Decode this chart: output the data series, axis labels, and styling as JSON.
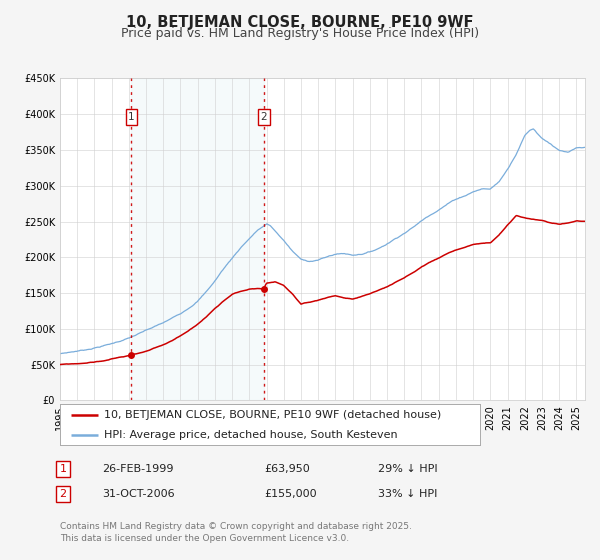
{
  "title": "10, BETJEMAN CLOSE, BOURNE, PE10 9WF",
  "subtitle": "Price paid vs. HM Land Registry's House Price Index (HPI)",
  "ylim": [
    0,
    450000
  ],
  "yticks": [
    0,
    50000,
    100000,
    150000,
    200000,
    250000,
    300000,
    350000,
    400000,
    450000
  ],
  "ytick_labels": [
    "£0",
    "£50K",
    "£100K",
    "£150K",
    "£200K",
    "£250K",
    "£300K",
    "£350K",
    "£400K",
    "£450K"
  ],
  "xlim_start": 1995.0,
  "xlim_end": 2025.5,
  "xticks": [
    1995,
    1996,
    1997,
    1998,
    1999,
    2000,
    2001,
    2002,
    2003,
    2004,
    2005,
    2006,
    2007,
    2008,
    2009,
    2010,
    2011,
    2012,
    2013,
    2014,
    2015,
    2016,
    2017,
    2018,
    2019,
    2020,
    2021,
    2022,
    2023,
    2024,
    2025
  ],
  "bg_color": "#f5f5f5",
  "plot_bg": "#ffffff",
  "red_line_color": "#cc0000",
  "blue_line_color": "#7aaddb",
  "sale1_x": 1999.15,
  "sale1_y": 63950,
  "sale2_x": 2006.83,
  "sale2_y": 155000,
  "vline_color": "#cc0000",
  "legend_red": "10, BETJEMAN CLOSE, BOURNE, PE10 9WF (detached house)",
  "legend_blue": "HPI: Average price, detached house, South Kesteven",
  "table_row1_num": "1",
  "table_row1_date": "26-FEB-1999",
  "table_row1_price": "£63,950",
  "table_row1_hpi": "29% ↓ HPI",
  "table_row2_num": "2",
  "table_row2_date": "31-OCT-2006",
  "table_row2_price": "£155,000",
  "table_row2_hpi": "33% ↓ HPI",
  "footer": "Contains HM Land Registry data © Crown copyright and database right 2025.\nThis data is licensed under the Open Government Licence v3.0.",
  "title_fontsize": 10.5,
  "subtitle_fontsize": 9,
  "tick_fontsize": 7,
  "legend_fontsize": 8,
  "table_fontsize": 8,
  "footer_fontsize": 6.5,
  "blue_kp_x": [
    1995.0,
    1995.5,
    1996.0,
    1996.5,
    1997.0,
    1997.5,
    1998.0,
    1998.5,
    1999.0,
    1999.5,
    2000.0,
    2000.5,
    2001.0,
    2001.5,
    2002.0,
    2002.5,
    2003.0,
    2003.5,
    2004.0,
    2004.5,
    2005.0,
    2005.5,
    2006.0,
    2006.5,
    2007.0,
    2007.25,
    2007.5,
    2008.0,
    2008.5,
    2009.0,
    2009.5,
    2010.0,
    2010.5,
    2011.0,
    2011.5,
    2012.0,
    2012.5,
    2013.0,
    2013.5,
    2014.0,
    2014.5,
    2015.0,
    2015.5,
    2016.0,
    2016.5,
    2017.0,
    2017.5,
    2018.0,
    2018.5,
    2019.0,
    2019.5,
    2020.0,
    2020.5,
    2021.0,
    2021.5,
    2022.0,
    2022.25,
    2022.5,
    2023.0,
    2023.5,
    2024.0,
    2024.5,
    2025.0,
    2025.5
  ],
  "blue_kp_y": [
    65000,
    67000,
    69000,
    71000,
    74000,
    77000,
    80000,
    84000,
    88000,
    93000,
    98000,
    103000,
    108000,
    114000,
    121000,
    130000,
    140000,
    153000,
    168000,
    185000,
    200000,
    215000,
    228000,
    240000,
    248000,
    245000,
    238000,
    225000,
    210000,
    198000,
    196000,
    198000,
    202000,
    206000,
    207000,
    205000,
    207000,
    210000,
    215000,
    222000,
    230000,
    238000,
    246000,
    255000,
    264000,
    272000,
    280000,
    287000,
    292000,
    298000,
    302000,
    302000,
    312000,
    330000,
    352000,
    378000,
    385000,
    388000,
    375000,
    368000,
    358000,
    355000,
    360000,
    360000
  ],
  "red_kp_x": [
    1995.0,
    1995.5,
    1996.0,
    1996.5,
    1997.0,
    1997.5,
    1998.0,
    1998.5,
    1999.0,
    1999.15,
    1999.5,
    2000.0,
    2000.5,
    2001.0,
    2001.5,
    2002.0,
    2002.5,
    2003.0,
    2003.5,
    2004.0,
    2004.5,
    2005.0,
    2005.5,
    2006.0,
    2006.5,
    2006.83,
    2007.0,
    2007.5,
    2008.0,
    2008.5,
    2009.0,
    2009.5,
    2010.0,
    2010.5,
    2011.0,
    2011.5,
    2012.0,
    2012.5,
    2013.0,
    2013.5,
    2014.0,
    2014.5,
    2015.0,
    2015.5,
    2016.0,
    2016.5,
    2017.0,
    2017.5,
    2018.0,
    2018.5,
    2019.0,
    2019.5,
    2020.0,
    2020.5,
    2021.0,
    2021.5,
    2022.0,
    2022.5,
    2023.0,
    2023.5,
    2024.0,
    2024.5,
    2025.0,
    2025.5
  ],
  "red_kp_y": [
    50000,
    50500,
    51000,
    52000,
    53500,
    55000,
    57500,
    60000,
    62000,
    63950,
    65500,
    68000,
    72000,
    76000,
    81000,
    88000,
    96000,
    105000,
    115000,
    127000,
    138000,
    148000,
    152000,
    155000,
    155500,
    155000,
    163000,
    165000,
    160000,
    148000,
    133000,
    135000,
    138000,
    142000,
    145000,
    142000,
    140000,
    143000,
    147000,
    152000,
    157000,
    163000,
    169000,
    176000,
    184000,
    191000,
    197000,
    203000,
    208000,
    212000,
    216000,
    217000,
    218000,
    228000,
    242000,
    255000,
    252000,
    250000,
    248000,
    245000,
    243000,
    245000,
    248000,
    248000
  ]
}
